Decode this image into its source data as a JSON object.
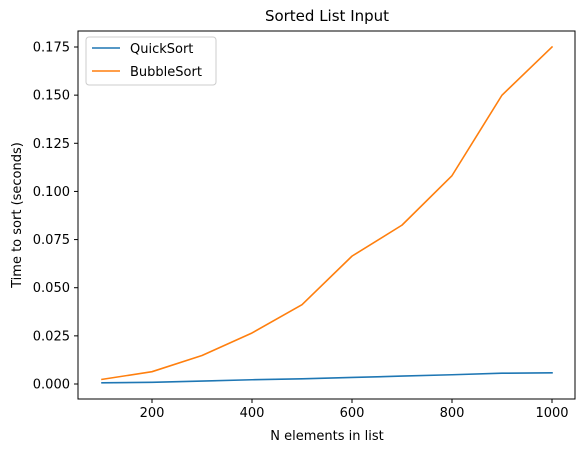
{
  "chart_data": {
    "type": "line",
    "title": "Sorted List Input",
    "xlabel": "N elements in list",
    "ylabel": "Time to sort (seconds)",
    "xlim": [
      100,
      1000
    ],
    "ylim": [
      0,
      0.175
    ],
    "x_ticks": [
      200,
      400,
      600,
      800,
      1000
    ],
    "x_tick_labels": [
      "200",
      "400",
      "600",
      "800",
      "1000"
    ],
    "y_ticks": [
      0,
      0.025,
      0.05,
      0.075,
      0.1,
      0.125,
      0.15,
      0.175
    ],
    "y_tick_labels": [
      "0.000",
      "0.025",
      "0.050",
      "0.075",
      "0.100",
      "0.125",
      "0.150",
      "0.175"
    ],
    "grid": false,
    "legend_position": "top-left",
    "x": [
      100,
      200,
      300,
      400,
      500,
      600,
      700,
      800,
      900,
      1000
    ],
    "series": [
      {
        "name": "QuickSort",
        "color": "#1f77b4",
        "values": [
          0.0006,
          0.0009,
          0.0015,
          0.0022,
          0.0027,
          0.0034,
          0.0041,
          0.0048,
          0.0056,
          0.0058
        ]
      },
      {
        "name": "BubbleSort",
        "color": "#ff7f0e",
        "values": [
          0.0024,
          0.0064,
          0.0148,
          0.0265,
          0.0412,
          0.0664,
          0.0825,
          0.1082,
          0.15,
          0.175
        ]
      }
    ]
  }
}
